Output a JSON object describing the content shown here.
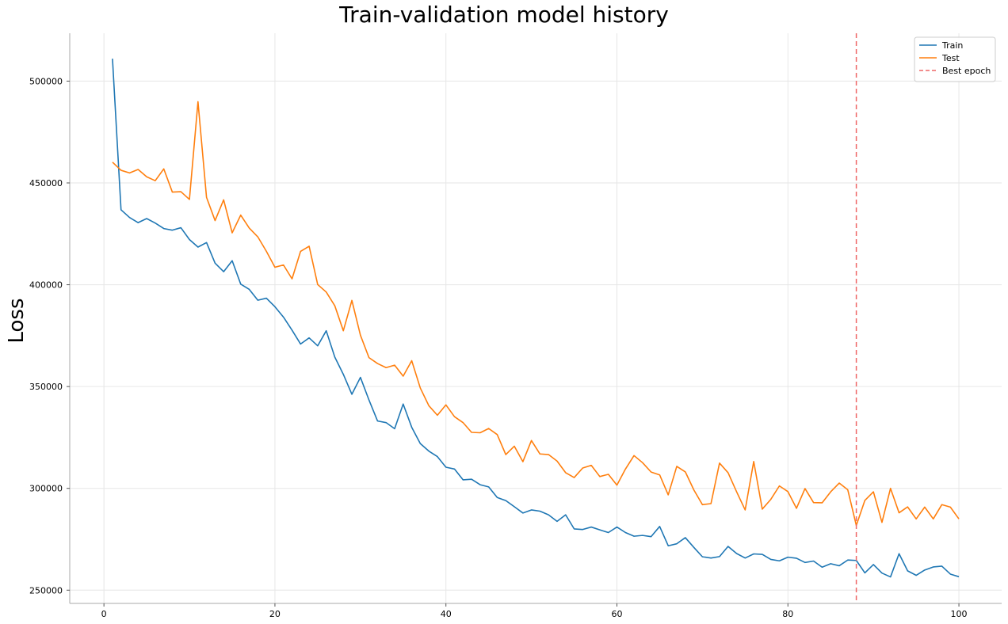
{
  "chart_data": {
    "type": "line",
    "title": "Train-validation model history",
    "xlabel": "",
    "ylabel": "Loss",
    "xlim": [
      -4,
      105
    ],
    "ylim": [
      243500,
      523500
    ],
    "x_ticks": [
      0,
      20,
      40,
      60,
      80,
      100
    ],
    "y_ticks": [
      250000,
      300000,
      350000,
      400000,
      450000,
      500000
    ],
    "grid": true,
    "legend_position": "top-right",
    "x": [
      1,
      2,
      3,
      4,
      5,
      6,
      7,
      8,
      9,
      10,
      11,
      12,
      13,
      14,
      15,
      16,
      17,
      18,
      19,
      20,
      21,
      22,
      23,
      24,
      25,
      26,
      27,
      28,
      29,
      30,
      31,
      32,
      33,
      34,
      35,
      36,
      37,
      38,
      39,
      40,
      41,
      42,
      43,
      44,
      45,
      46,
      47,
      48,
      49,
      50,
      51,
      52,
      53,
      54,
      55,
      56,
      57,
      58,
      59,
      60,
      61,
      62,
      63,
      64,
      65,
      66,
      67,
      68,
      69,
      70,
      71,
      72,
      73,
      74,
      75,
      76,
      77,
      78,
      79,
      80,
      81,
      82,
      83,
      84,
      85,
      86,
      87,
      88,
      89,
      90,
      91,
      92,
      93,
      94,
      95,
      96,
      97,
      98,
      99,
      100
    ],
    "series": [
      {
        "name": "Train",
        "color": "#1f77b4",
        "style": "solid",
        "values": [
          511000,
          436800,
          433000,
          430500,
          432500,
          430300,
          427600,
          426800,
          428000,
          422200,
          418500,
          420700,
          410600,
          406400,
          411800,
          400300,
          397700,
          392400,
          393400,
          389200,
          384100,
          377700,
          370900,
          373900,
          370000,
          377400,
          364500,
          356000,
          346200,
          354500,
          343400,
          333100,
          332300,
          329300,
          341400,
          330000,
          322000,
          318300,
          315600,
          310400,
          309500,
          304200,
          304500,
          301800,
          300700,
          295500,
          294000,
          291000,
          287900,
          289400,
          288800,
          287000,
          283800,
          287000,
          280100,
          279800,
          281000,
          279600,
          278300,
          281000,
          278300,
          276500,
          276900,
          276300,
          281300,
          271800,
          272800,
          275800,
          271000,
          266400,
          265800,
          266500,
          271500,
          268000,
          265800,
          267800,
          267600,
          265100,
          264400,
          266200,
          265700,
          263600,
          264300,
          261300,
          263000,
          262000,
          264800,
          264600,
          258500,
          262600,
          258400,
          256500,
          267900,
          259500,
          257300,
          259900,
          261400,
          261800,
          257900,
          256600
        ]
      },
      {
        "name": "Test",
        "color": "#ff7f0e",
        "style": "solid",
        "values": [
          460200,
          456200,
          454900,
          456600,
          453000,
          451100,
          456900,
          445500,
          445700,
          441900,
          489900,
          442900,
          431500,
          441700,
          425500,
          434200,
          427800,
          423500,
          416400,
          408600,
          409700,
          402900,
          416400,
          418900,
          400100,
          396400,
          389700,
          377400,
          392300,
          375200,
          364200,
          361300,
          359300,
          360500,
          355100,
          362700,
          349300,
          340600,
          335900,
          341000,
          335200,
          332300,
          327500,
          327300,
          329400,
          326400,
          316600,
          320700,
          313100,
          323500,
          316900,
          316600,
          313400,
          307700,
          305300,
          310000,
          311300,
          305800,
          306900,
          301600,
          309500,
          316100,
          312600,
          308000,
          306600,
          296800,
          310800,
          308100,
          299200,
          292000,
          292500,
          312400,
          307700,
          298300,
          289400,
          313200,
          289800,
          294600,
          301200,
          298400,
          290200,
          299900,
          293000,
          292900,
          298300,
          302600,
          299300,
          281800,
          294100,
          298300,
          283300,
          300000,
          288000,
          290900,
          285000,
          290800,
          285000,
          292000,
          290800,
          285000
        ]
      }
    ],
    "annotations": [
      {
        "name": "Best epoch",
        "type": "vline",
        "x": 88,
        "color": "#ee6666",
        "style": "dashed"
      }
    ]
  }
}
